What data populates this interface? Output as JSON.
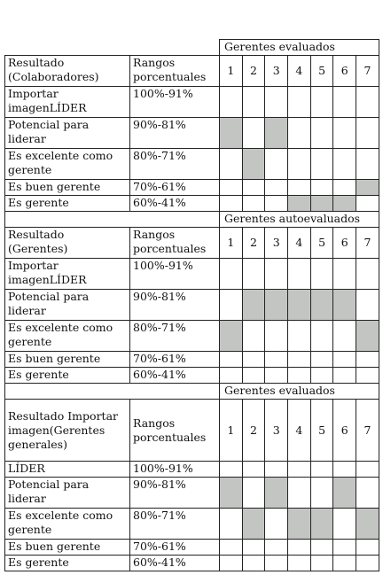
{
  "sections": [
    {
      "group_title": "Gerentes evaluados",
      "header": {
        "result": "Resultado (Colaboradores)",
        "range": "Rangos porcentuales"
      },
      "columns": [
        1,
        2,
        3,
        4,
        5,
        6,
        7
      ],
      "rows": [
        {
          "label": "Importar imagenLÍDER",
          "range": "100%-91%",
          "shaded": []
        },
        {
          "label": "Potencial para liderar",
          "range": "90%-81%",
          "shaded": [
            1,
            3
          ]
        },
        {
          "label": "Es excelente como gerente",
          "range": "80%-71%",
          "shaded": [
            2
          ]
        },
        {
          "label": "Es buen gerente",
          "range": "70%-61%",
          "shaded": [
            7
          ]
        },
        {
          "label": "Es gerente",
          "range": "60%-41%",
          "shaded": [
            4,
            5,
            6
          ]
        }
      ]
    },
    {
      "group_title": "Gerentes autoevaluados",
      "header": {
        "result": "Resultado (Gerentes)",
        "range": "Rangos porcentuales"
      },
      "columns": [
        1,
        2,
        3,
        4,
        5,
        6,
        7
      ],
      "rows": [
        {
          "label": "Importar imagenLÍDER",
          "range": "100%-91%",
          "shaded": []
        },
        {
          "label": "Potencial para liderar",
          "range": "90%-81%",
          "shaded": [
            2,
            3,
            4,
            5,
            6
          ]
        },
        {
          "label": "Es excelente como gerente",
          "range": "80%-71%",
          "shaded": [
            1,
            7
          ]
        },
        {
          "label": "Es buen gerente",
          "range": "70%-61%",
          "shaded": []
        },
        {
          "label": "Es gerente",
          "range": "60%-41%",
          "shaded": []
        }
      ]
    },
    {
      "group_title": "Gerentes evaluados",
      "header": {
        "result": "Resultado Importar imagen(Gerentes generales)",
        "range": "Rangos porcentuales"
      },
      "columns": [
        1,
        2,
        3,
        4,
        5,
        6,
        7
      ],
      "rows": [
        {
          "label": "LÍDER",
          "range": "100%-91%",
          "shaded": []
        },
        {
          "label": "Potencial para liderar",
          "range": "90%-81%",
          "shaded": [
            1,
            3,
            6
          ]
        },
        {
          "label": "Es excelente como gerente",
          "range": "80%-71%",
          "shaded": [
            2,
            4,
            5,
            7
          ]
        },
        {
          "label": "Es buen gerente",
          "range": "70%-61%",
          "shaded": []
        },
        {
          "label": "Es gerente",
          "range": "60%-41%",
          "shaded": []
        }
      ]
    }
  ]
}
